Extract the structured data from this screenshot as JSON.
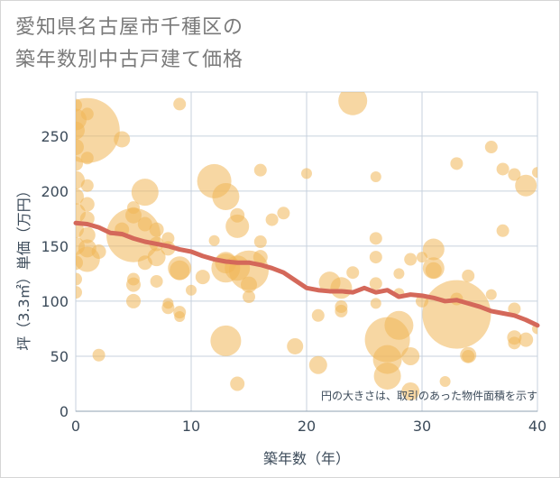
{
  "title_lines": [
    "愛知県名古屋市千種区の",
    "築年数別中古戸建て価格"
  ],
  "chart_data": {
    "type": "scatter",
    "title": "愛知県名古屋市千種区の築年数別中古戸建て価格",
    "xlabel": "築年数（年）",
    "ylabel": "坪（3.3㎡）単価（万円）",
    "xlim": [
      0,
      40
    ],
    "ylim": [
      0,
      290
    ],
    "xticks": [
      0,
      10,
      20,
      30,
      40
    ],
    "yticks": [
      0,
      50,
      100,
      150,
      200,
      250
    ],
    "grid": true,
    "annotation": "円の大きさは、取引のあった物件面積を示す",
    "colors": {
      "bubble_fill": "#f0b658",
      "bubble_opacity": 0.55,
      "trend_line": "#d4685a",
      "grid": "#c7d2dd",
      "axis_text": "#3c4b5a"
    },
    "bubbles": [
      {
        "x": 0,
        "y": 265,
        "r": 12
      },
      {
        "x": 0,
        "y": 255,
        "r": 10
      },
      {
        "x": 0,
        "y": 240,
        "r": 9
      },
      {
        "x": 0,
        "y": 225,
        "r": 8
      },
      {
        "x": 0,
        "y": 210,
        "r": 10
      },
      {
        "x": 0,
        "y": 195,
        "r": 9
      },
      {
        "x": 0,
        "y": 180,
        "r": 11
      },
      {
        "x": 0,
        "y": 165,
        "r": 9
      },
      {
        "x": 0,
        "y": 150,
        "r": 10
      },
      {
        "x": 0,
        "y": 135,
        "r": 8
      },
      {
        "x": 0,
        "y": 120,
        "r": 7
      },
      {
        "x": 0,
        "y": 108,
        "r": 7
      },
      {
        "x": 0,
        "y": 278,
        "r": 7
      },
      {
        "x": 1,
        "y": 255,
        "r": 36
      },
      {
        "x": 1,
        "y": 270,
        "r": 7
      },
      {
        "x": 1,
        "y": 230,
        "r": 7
      },
      {
        "x": 1,
        "y": 205,
        "r": 7
      },
      {
        "x": 1,
        "y": 188,
        "r": 8
      },
      {
        "x": 1,
        "y": 175,
        "r": 8
      },
      {
        "x": 1,
        "y": 160,
        "r": 9
      },
      {
        "x": 1,
        "y": 148,
        "r": 10
      },
      {
        "x": 1,
        "y": 138,
        "r": 14
      },
      {
        "x": 2,
        "y": 145,
        "r": 8
      },
      {
        "x": 2,
        "y": 51,
        "r": 7
      },
      {
        "x": 4,
        "y": 247,
        "r": 9
      },
      {
        "x": 4,
        "y": 165,
        "r": 8
      },
      {
        "x": 5,
        "y": 160,
        "r": 30
      },
      {
        "x": 5,
        "y": 178,
        "r": 9
      },
      {
        "x": 5,
        "y": 185,
        "r": 7
      },
      {
        "x": 5,
        "y": 115,
        "r": 8
      },
      {
        "x": 5,
        "y": 120,
        "r": 7
      },
      {
        "x": 5,
        "y": 100,
        "r": 8
      },
      {
        "x": 6,
        "y": 199,
        "r": 15
      },
      {
        "x": 6,
        "y": 170,
        "r": 8
      },
      {
        "x": 6,
        "y": 135,
        "r": 8
      },
      {
        "x": 7,
        "y": 165,
        "r": 8
      },
      {
        "x": 7,
        "y": 152,
        "r": 8
      },
      {
        "x": 7,
        "y": 140,
        "r": 10
      },
      {
        "x": 7,
        "y": 118,
        "r": 7
      },
      {
        "x": 8,
        "y": 157,
        "r": 7
      },
      {
        "x": 8,
        "y": 148,
        "r": 8
      },
      {
        "x": 8,
        "y": 98,
        "r": 6
      },
      {
        "x": 8,
        "y": 94,
        "r": 7
      },
      {
        "x": 9,
        "y": 279,
        "r": 7
      },
      {
        "x": 9,
        "y": 130,
        "r": 13
      },
      {
        "x": 9,
        "y": 128,
        "r": 11
      },
      {
        "x": 9,
        "y": 90,
        "r": 7
      },
      {
        "x": 9,
        "y": 86,
        "r": 6
      },
      {
        "x": 10,
        "y": 110,
        "r": 6
      },
      {
        "x": 11,
        "y": 122,
        "r": 8
      },
      {
        "x": 12,
        "y": 209,
        "r": 19
      },
      {
        "x": 12,
        "y": 155,
        "r": 6
      },
      {
        "x": 13,
        "y": 195,
        "r": 15
      },
      {
        "x": 13,
        "y": 135,
        "r": 12
      },
      {
        "x": 13,
        "y": 130,
        "r": 16
      },
      {
        "x": 13,
        "y": 64,
        "r": 17
      },
      {
        "x": 14,
        "y": 178,
        "r": 8
      },
      {
        "x": 14,
        "y": 168,
        "r": 13
      },
      {
        "x": 14,
        "y": 130,
        "r": 14
      },
      {
        "x": 14,
        "y": 25,
        "r": 8
      },
      {
        "x": 15,
        "y": 128,
        "r": 22
      },
      {
        "x": 15,
        "y": 115,
        "r": 9
      },
      {
        "x": 15,
        "y": 104,
        "r": 7
      },
      {
        "x": 16,
        "y": 219,
        "r": 7
      },
      {
        "x": 16,
        "y": 154,
        "r": 7
      },
      {
        "x": 16,
        "y": 140,
        "r": 8
      },
      {
        "x": 17,
        "y": 174,
        "r": 7
      },
      {
        "x": 18,
        "y": 180,
        "r": 7
      },
      {
        "x": 19,
        "y": 59,
        "r": 9
      },
      {
        "x": 20,
        "y": 216,
        "r": 6
      },
      {
        "x": 21,
        "y": 87,
        "r": 7
      },
      {
        "x": 21,
        "y": 42,
        "r": 10
      },
      {
        "x": 22,
        "y": 117,
        "r": 12
      },
      {
        "x": 23,
        "y": 112,
        "r": 12
      },
      {
        "x": 23,
        "y": 95,
        "r": 7
      },
      {
        "x": 23,
        "y": 91,
        "r": 7
      },
      {
        "x": 24,
        "y": 282,
        "r": 16
      },
      {
        "x": 24,
        "y": 126,
        "r": 7
      },
      {
        "x": 26,
        "y": 213,
        "r": 6
      },
      {
        "x": 26,
        "y": 157,
        "r": 7
      },
      {
        "x": 26,
        "y": 140,
        "r": 7
      },
      {
        "x": 26,
        "y": 116,
        "r": 7
      },
      {
        "x": 26,
        "y": 98,
        "r": 6
      },
      {
        "x": 27,
        "y": 65,
        "r": 25
      },
      {
        "x": 27,
        "y": 47,
        "r": 16
      },
      {
        "x": 27,
        "y": 32,
        "r": 15
      },
      {
        "x": 28,
        "y": 78,
        "r": 16
      },
      {
        "x": 28,
        "y": 125,
        "r": 6
      },
      {
        "x": 28,
        "y": 107,
        "r": 6
      },
      {
        "x": 29,
        "y": 138,
        "r": 7
      },
      {
        "x": 29,
        "y": 50,
        "r": 10
      },
      {
        "x": 29,
        "y": 18,
        "r": 10
      },
      {
        "x": 30,
        "y": 140,
        "r": 6
      },
      {
        "x": 30,
        "y": 100,
        "r": 7
      },
      {
        "x": 31,
        "y": 147,
        "r": 12
      },
      {
        "x": 31,
        "y": 130,
        "r": 12
      },
      {
        "x": 31,
        "y": 128,
        "r": 9
      },
      {
        "x": 32,
        "y": 27,
        "r": 6
      },
      {
        "x": 33,
        "y": 225,
        "r": 7
      },
      {
        "x": 33,
        "y": 88,
        "r": 38
      },
      {
        "x": 33,
        "y": 102,
        "r": 7
      },
      {
        "x": 34,
        "y": 123,
        "r": 7
      },
      {
        "x": 34,
        "y": 51,
        "r": 9
      },
      {
        "x": 34,
        "y": 50,
        "r": 7
      },
      {
        "x": 36,
        "y": 240,
        "r": 7
      },
      {
        "x": 36,
        "y": 106,
        "r": 6
      },
      {
        "x": 37,
        "y": 220,
        "r": 7
      },
      {
        "x": 37,
        "y": 164,
        "r": 7
      },
      {
        "x": 38,
        "y": 215,
        "r": 7
      },
      {
        "x": 38,
        "y": 93,
        "r": 7
      },
      {
        "x": 38,
        "y": 67,
        "r": 8
      },
      {
        "x": 38,
        "y": 62,
        "r": 7
      },
      {
        "x": 39,
        "y": 205,
        "r": 12
      },
      {
        "x": 39,
        "y": 65,
        "r": 8
      },
      {
        "x": 40,
        "y": 217,
        "r": 6
      },
      {
        "x": 40,
        "y": 75,
        "r": 6
      }
    ],
    "trend": {
      "x": [
        0,
        1,
        2,
        3,
        4,
        5,
        6,
        7,
        8,
        9,
        10,
        11,
        12,
        13,
        14,
        15,
        16,
        17,
        18,
        19,
        20,
        21,
        22,
        23,
        24,
        25,
        26,
        27,
        28,
        29,
        30,
        31,
        32,
        33,
        34,
        35,
        36,
        37,
        38,
        39,
        40
      ],
      "y": [
        171,
        170,
        167,
        162,
        161,
        157,
        154,
        152,
        150,
        147,
        145,
        141,
        138,
        136,
        135,
        135,
        133,
        130,
        126,
        119,
        112,
        110,
        109,
        109,
        108,
        112,
        108,
        110,
        104,
        106,
        105,
        103,
        100,
        101,
        98,
        95,
        91,
        89,
        87,
        83,
        78
      ]
    }
  }
}
